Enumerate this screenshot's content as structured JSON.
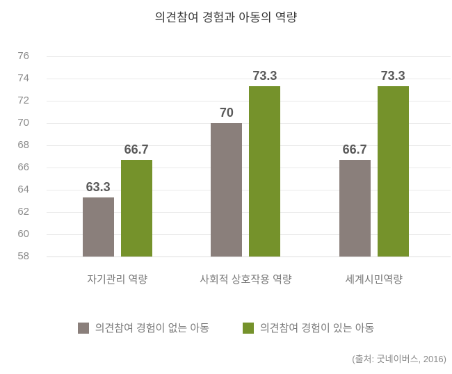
{
  "chart": {
    "title": "의견참여 경험과 아동의 역량",
    "source": "(출처: 굿네이버스, 2016)"
  },
  "chart_data": {
    "type": "bar",
    "title": "의견참여 경험과 아동의 역량",
    "categories": [
      "자기관리 역량",
      "사회적 상호작용 역량",
      "세계시민역량"
    ],
    "series": [
      {
        "name": "의견참여 경험이 없는 아동",
        "color": "#8a7f7b",
        "values": [
          63.3,
          70,
          66.7
        ]
      },
      {
        "name": "의견참여 경험이 있는 아동",
        "color": "#75922b",
        "values": [
          66.7,
          73.3,
          73.3
        ]
      }
    ],
    "xlabel": "",
    "ylabel": "",
    "ylim": [
      58,
      76
    ],
    "ytick_step": 2,
    "grid": true,
    "value_labels": true,
    "legend_position": "bottom",
    "source": "(출처: 굿네이버스, 2016)"
  }
}
